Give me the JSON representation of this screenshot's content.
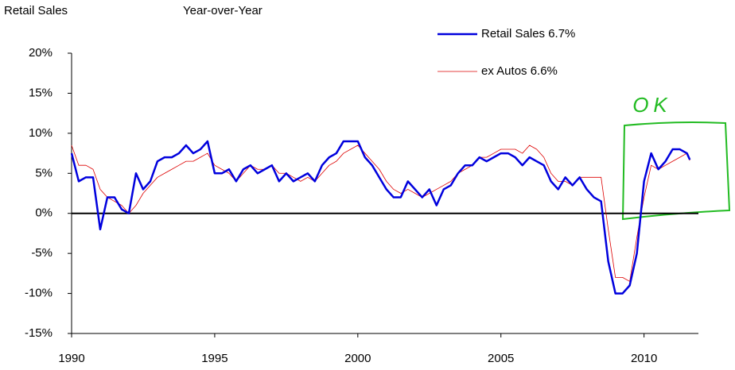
{
  "chart_data": {
    "type": "line",
    "title": "Retail Sales",
    "subtitle": "Year-over-Year",
    "annotation": "OK",
    "x": [
      1990.0,
      1990.25,
      1990.5,
      1990.75,
      1991.0,
      1991.25,
      1991.5,
      1991.75,
      1992.0,
      1992.25,
      1992.5,
      1992.75,
      1993.0,
      1993.25,
      1993.5,
      1993.75,
      1994.0,
      1994.25,
      1994.5,
      1994.75,
      1995.0,
      1995.25,
      1995.5,
      1995.75,
      1996.0,
      1996.25,
      1996.5,
      1996.75,
      1997.0,
      1997.25,
      1997.5,
      1997.75,
      1998.0,
      1998.25,
      1998.5,
      1998.75,
      1999.0,
      1999.25,
      1999.5,
      1999.75,
      2000.0,
      2000.25,
      2000.5,
      2000.75,
      2001.0,
      2001.25,
      2001.5,
      2001.75,
      2002.0,
      2002.25,
      2002.5,
      2002.75,
      2003.0,
      2003.25,
      2003.5,
      2003.75,
      2004.0,
      2004.25,
      2004.5,
      2004.75,
      2005.0,
      2005.25,
      2005.5,
      2005.75,
      2006.0,
      2006.25,
      2006.5,
      2006.75,
      2007.0,
      2007.25,
      2007.5,
      2007.75,
      2008.0,
      2008.25,
      2008.5,
      2008.75,
      2009.0,
      2009.25,
      2009.5,
      2009.75,
      2010.0,
      2010.25,
      2010.5,
      2010.75,
      2011.0,
      2011.25,
      2011.5,
      2011.6
    ],
    "series": [
      {
        "name": "Retail Sales 6.7%",
        "color": "#0000dd",
        "width": 2.5,
        "values": [
          7.5,
          4,
          4.5,
          4.5,
          -2,
          2,
          2,
          0.5,
          0,
          5,
          3,
          4,
          6.5,
          7,
          7,
          7.5,
          8.5,
          7.5,
          8,
          9,
          5,
          5,
          5.5,
          4,
          5.5,
          6,
          5,
          5.5,
          6,
          4,
          5,
          4,
          4.5,
          5,
          4,
          6,
          7,
          7.5,
          9,
          9,
          9,
          7,
          6,
          4.5,
          3,
          2,
          2,
          4,
          3,
          2,
          3,
          1,
          3,
          3.5,
          5,
          6,
          6,
          7,
          6.5,
          7,
          7.5,
          7.5,
          7,
          6,
          7,
          6.5,
          6,
          4,
          3,
          4.5,
          3.5,
          4.5,
          3,
          2,
          1.5,
          -6,
          -10,
          -10,
          -9,
          -5,
          4,
          7.5,
          5.5,
          6.5,
          8,
          8,
          7.5,
          6.7
        ]
      },
      {
        "name": "ex Autos 6.6%",
        "color": "#dd0000",
        "width": 0.8,
        "values": [
          8.5,
          6,
          6,
          5.5,
          3,
          2,
          1.5,
          1,
          0,
          1,
          2.5,
          3.5,
          4.5,
          5,
          5.5,
          6,
          6.5,
          6.5,
          7,
          7.5,
          6,
          5.5,
          5,
          4,
          5,
          6,
          5.5,
          5.5,
          6,
          5,
          5,
          4.5,
          4,
          4.5,
          4,
          5,
          6,
          6.5,
          7.5,
          8,
          8.5,
          7.5,
          6.5,
          5.5,
          4,
          3,
          2.5,
          3,
          2.5,
          2,
          2.5,
          3,
          3.5,
          4,
          5,
          5.5,
          6,
          7,
          7,
          7.5,
          8,
          8,
          8,
          7.5,
          8.5,
          8,
          7,
          5,
          4,
          4,
          3.5,
          4.5,
          4.5,
          4.5,
          4.5,
          -2,
          -8,
          -8,
          -8.5,
          -3,
          2,
          6,
          5.5,
          6,
          6.5,
          7,
          7.5,
          6.6
        ]
      }
    ],
    "xlim": [
      1990,
      2011.9
    ],
    "xticks": [
      1990,
      1995,
      2000,
      2005,
      2010
    ],
    "ylim": [
      -15,
      20
    ],
    "yticks": [
      {
        "value": -15,
        "label": "-15%"
      },
      {
        "value": -10,
        "label": "-10%"
      },
      {
        "value": -5,
        "label": "-5%"
      },
      {
        "value": 0,
        "label": "0%"
      },
      {
        "value": 5,
        "label": "5%"
      },
      {
        "value": 10,
        "label": "10%"
      },
      {
        "value": 15,
        "label": "15%"
      },
      {
        "value": 20,
        "label": "20%"
      }
    ]
  }
}
